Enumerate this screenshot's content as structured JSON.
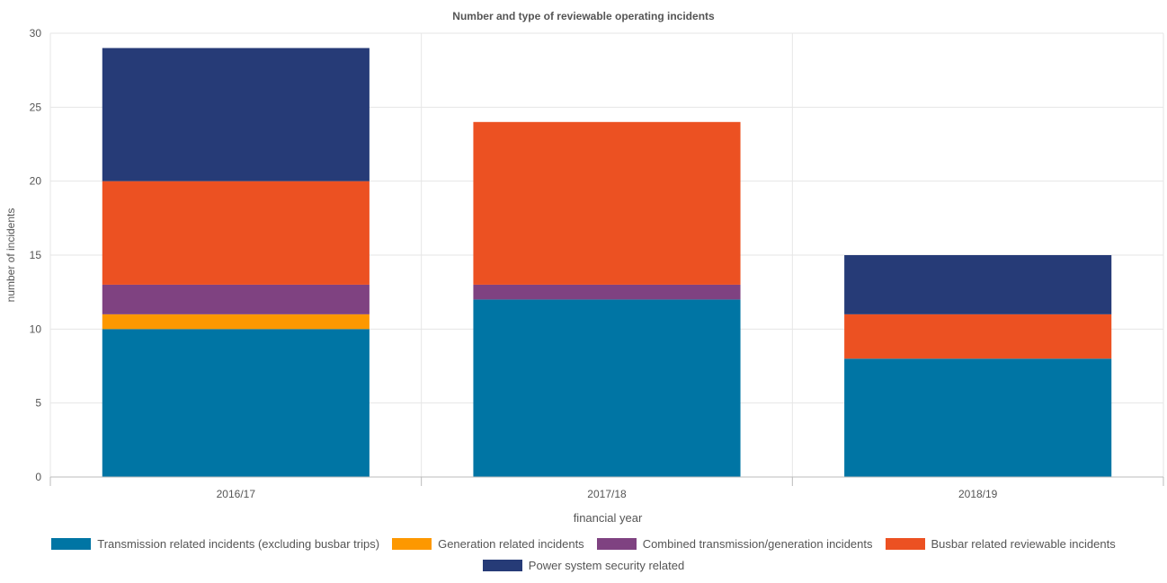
{
  "chart_data": {
    "type": "bar",
    "stacked": true,
    "title": "Number and type of reviewable operating incidents",
    "xlabel": "financial year",
    "ylabel": "number of incidents",
    "ylim": [
      0,
      30
    ],
    "yticks": [
      0,
      5,
      10,
      15,
      20,
      25,
      30
    ],
    "grid": true,
    "legend_position": "bottom",
    "categories": [
      "2016/17",
      "2017/18",
      "2018/19"
    ],
    "series": [
      {
        "name": "Transmission related incidents (excluding busbar trips)",
        "color": "#0075a4",
        "values": [
          10,
          12,
          8
        ]
      },
      {
        "name": "Generation related incidents",
        "color": "#fd9800",
        "values": [
          1,
          0,
          0
        ]
      },
      {
        "name": "Combined transmission/generation incidents",
        "color": "#7f4281",
        "values": [
          2,
          1,
          0
        ]
      },
      {
        "name": "Busbar related reviewable incidents",
        "color": "#ec5122",
        "values": [
          7,
          11,
          3
        ]
      },
      {
        "name": "Power system security related",
        "color": "#263b77",
        "values": [
          9,
          0,
          4
        ]
      }
    ]
  }
}
